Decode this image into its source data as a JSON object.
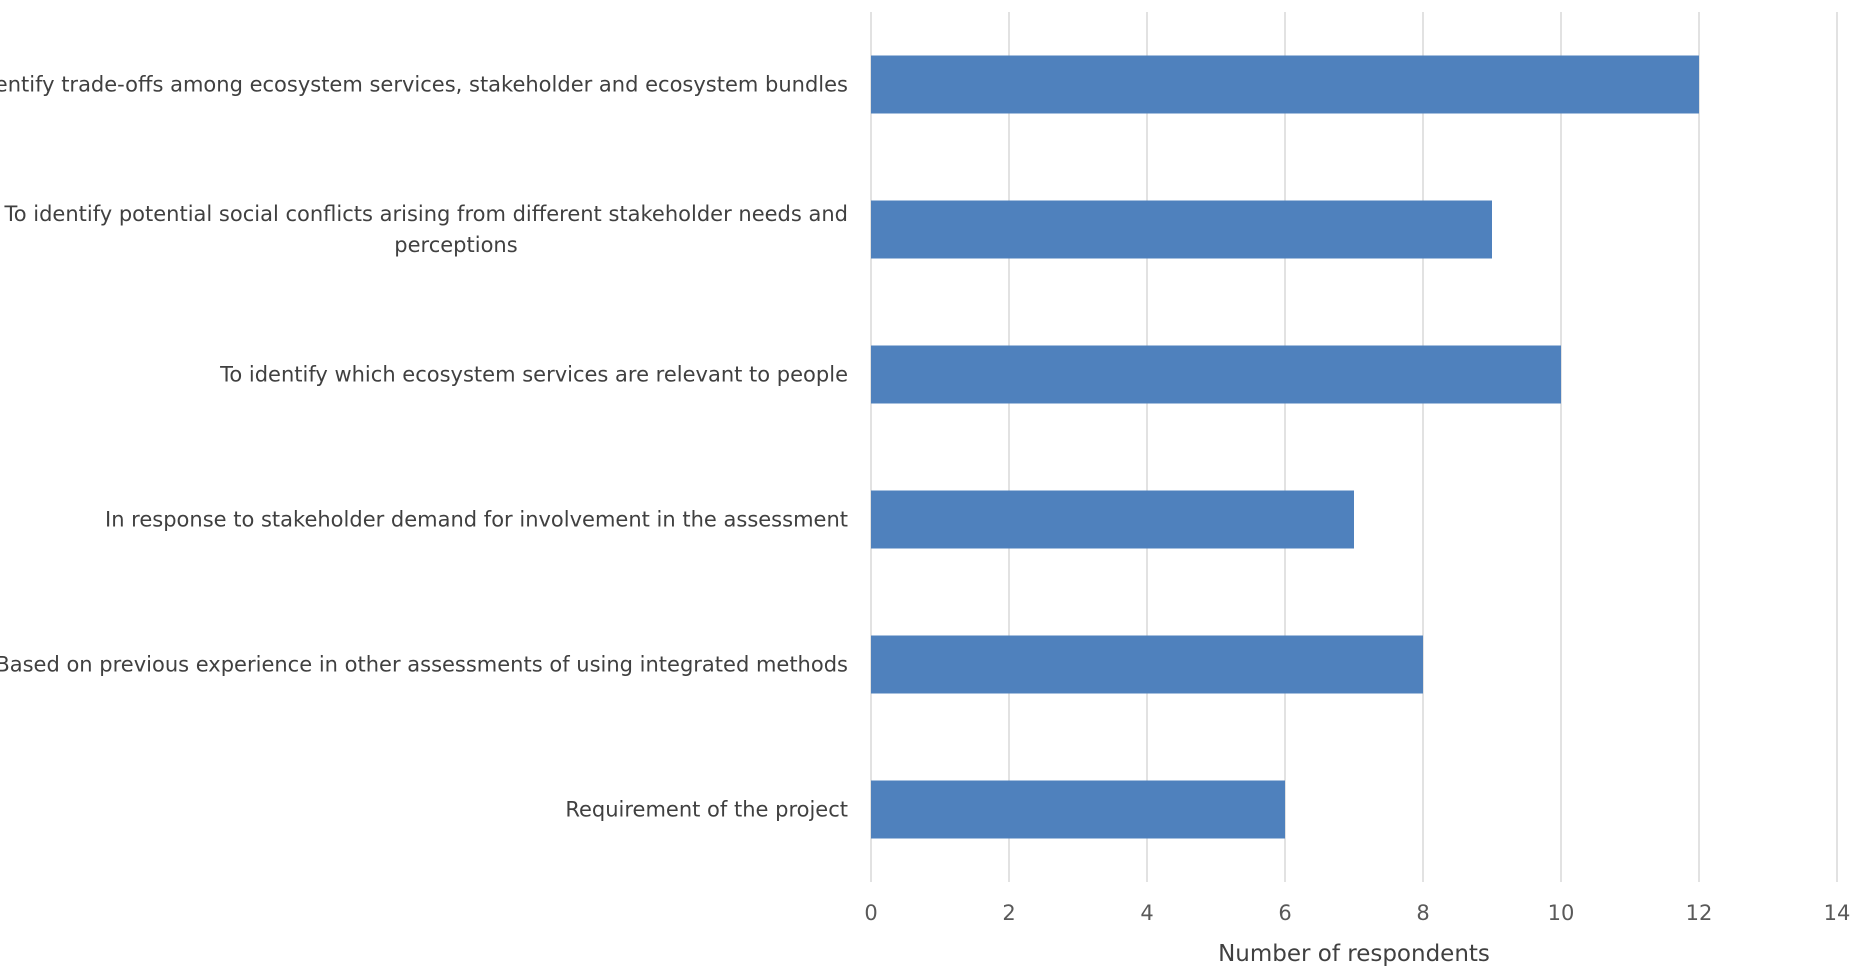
{
  "chart_data": {
    "type": "bar",
    "orientation": "horizontal",
    "title": "",
    "xlabel": "Number of respondents",
    "ylabel": "",
    "xlim": [
      0,
      14
    ],
    "x_ticks": [
      0,
      2,
      4,
      6,
      8,
      10,
      12,
      14
    ],
    "grid": true,
    "legend": "none",
    "bar_color": "#4f81bd",
    "categories": [
      [
        "To identify trade-offs among ecosystem services, stakeholder and ecosystem bundles"
      ],
      [
        "To identify potential social conflicts arising from different stakeholder needs and",
        "perceptions"
      ],
      [
        "To identify which ecosystem services are relevant to people"
      ],
      [
        "In response to stakeholder demand for involvement in the assessment"
      ],
      [
        "Based on previous experience in other assessments of using integrated methods"
      ],
      [
        "Requirement of the project"
      ]
    ],
    "values": [
      12,
      9,
      10,
      7,
      8,
      6
    ]
  }
}
